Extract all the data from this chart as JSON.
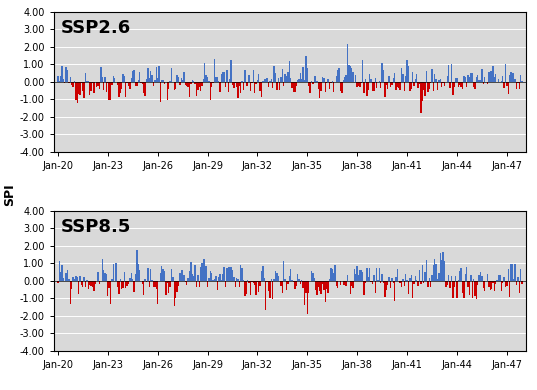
{
  "title1": "SSP2.6",
  "title2": "SSP8.5",
  "ylabel": "SPI",
  "ylim": [
    -4.0,
    4.0
  ],
  "yticks": [
    -4.0,
    -3.0,
    -2.0,
    -1.0,
    0.0,
    1.0,
    2.0,
    3.0,
    4.0
  ],
  "ytick_labels": [
    "-4.00",
    "-3.00",
    "-2.00",
    "-1.00",
    "0.00",
    "1.00",
    "2.00",
    "3.00",
    "4.00"
  ],
  "xtick_labels": [
    "Jan-20",
    "Jan-23",
    "Jan-26",
    "Jan-29",
    "Jan-32",
    "Jan-35",
    "Jan-38",
    "Jan-41",
    "Jan-44",
    "Jan-47"
  ],
  "color_positive": "#4472C4",
  "color_negative": "#CC0000",
  "background_color": "#D9D9D9",
  "n_months": 336
}
